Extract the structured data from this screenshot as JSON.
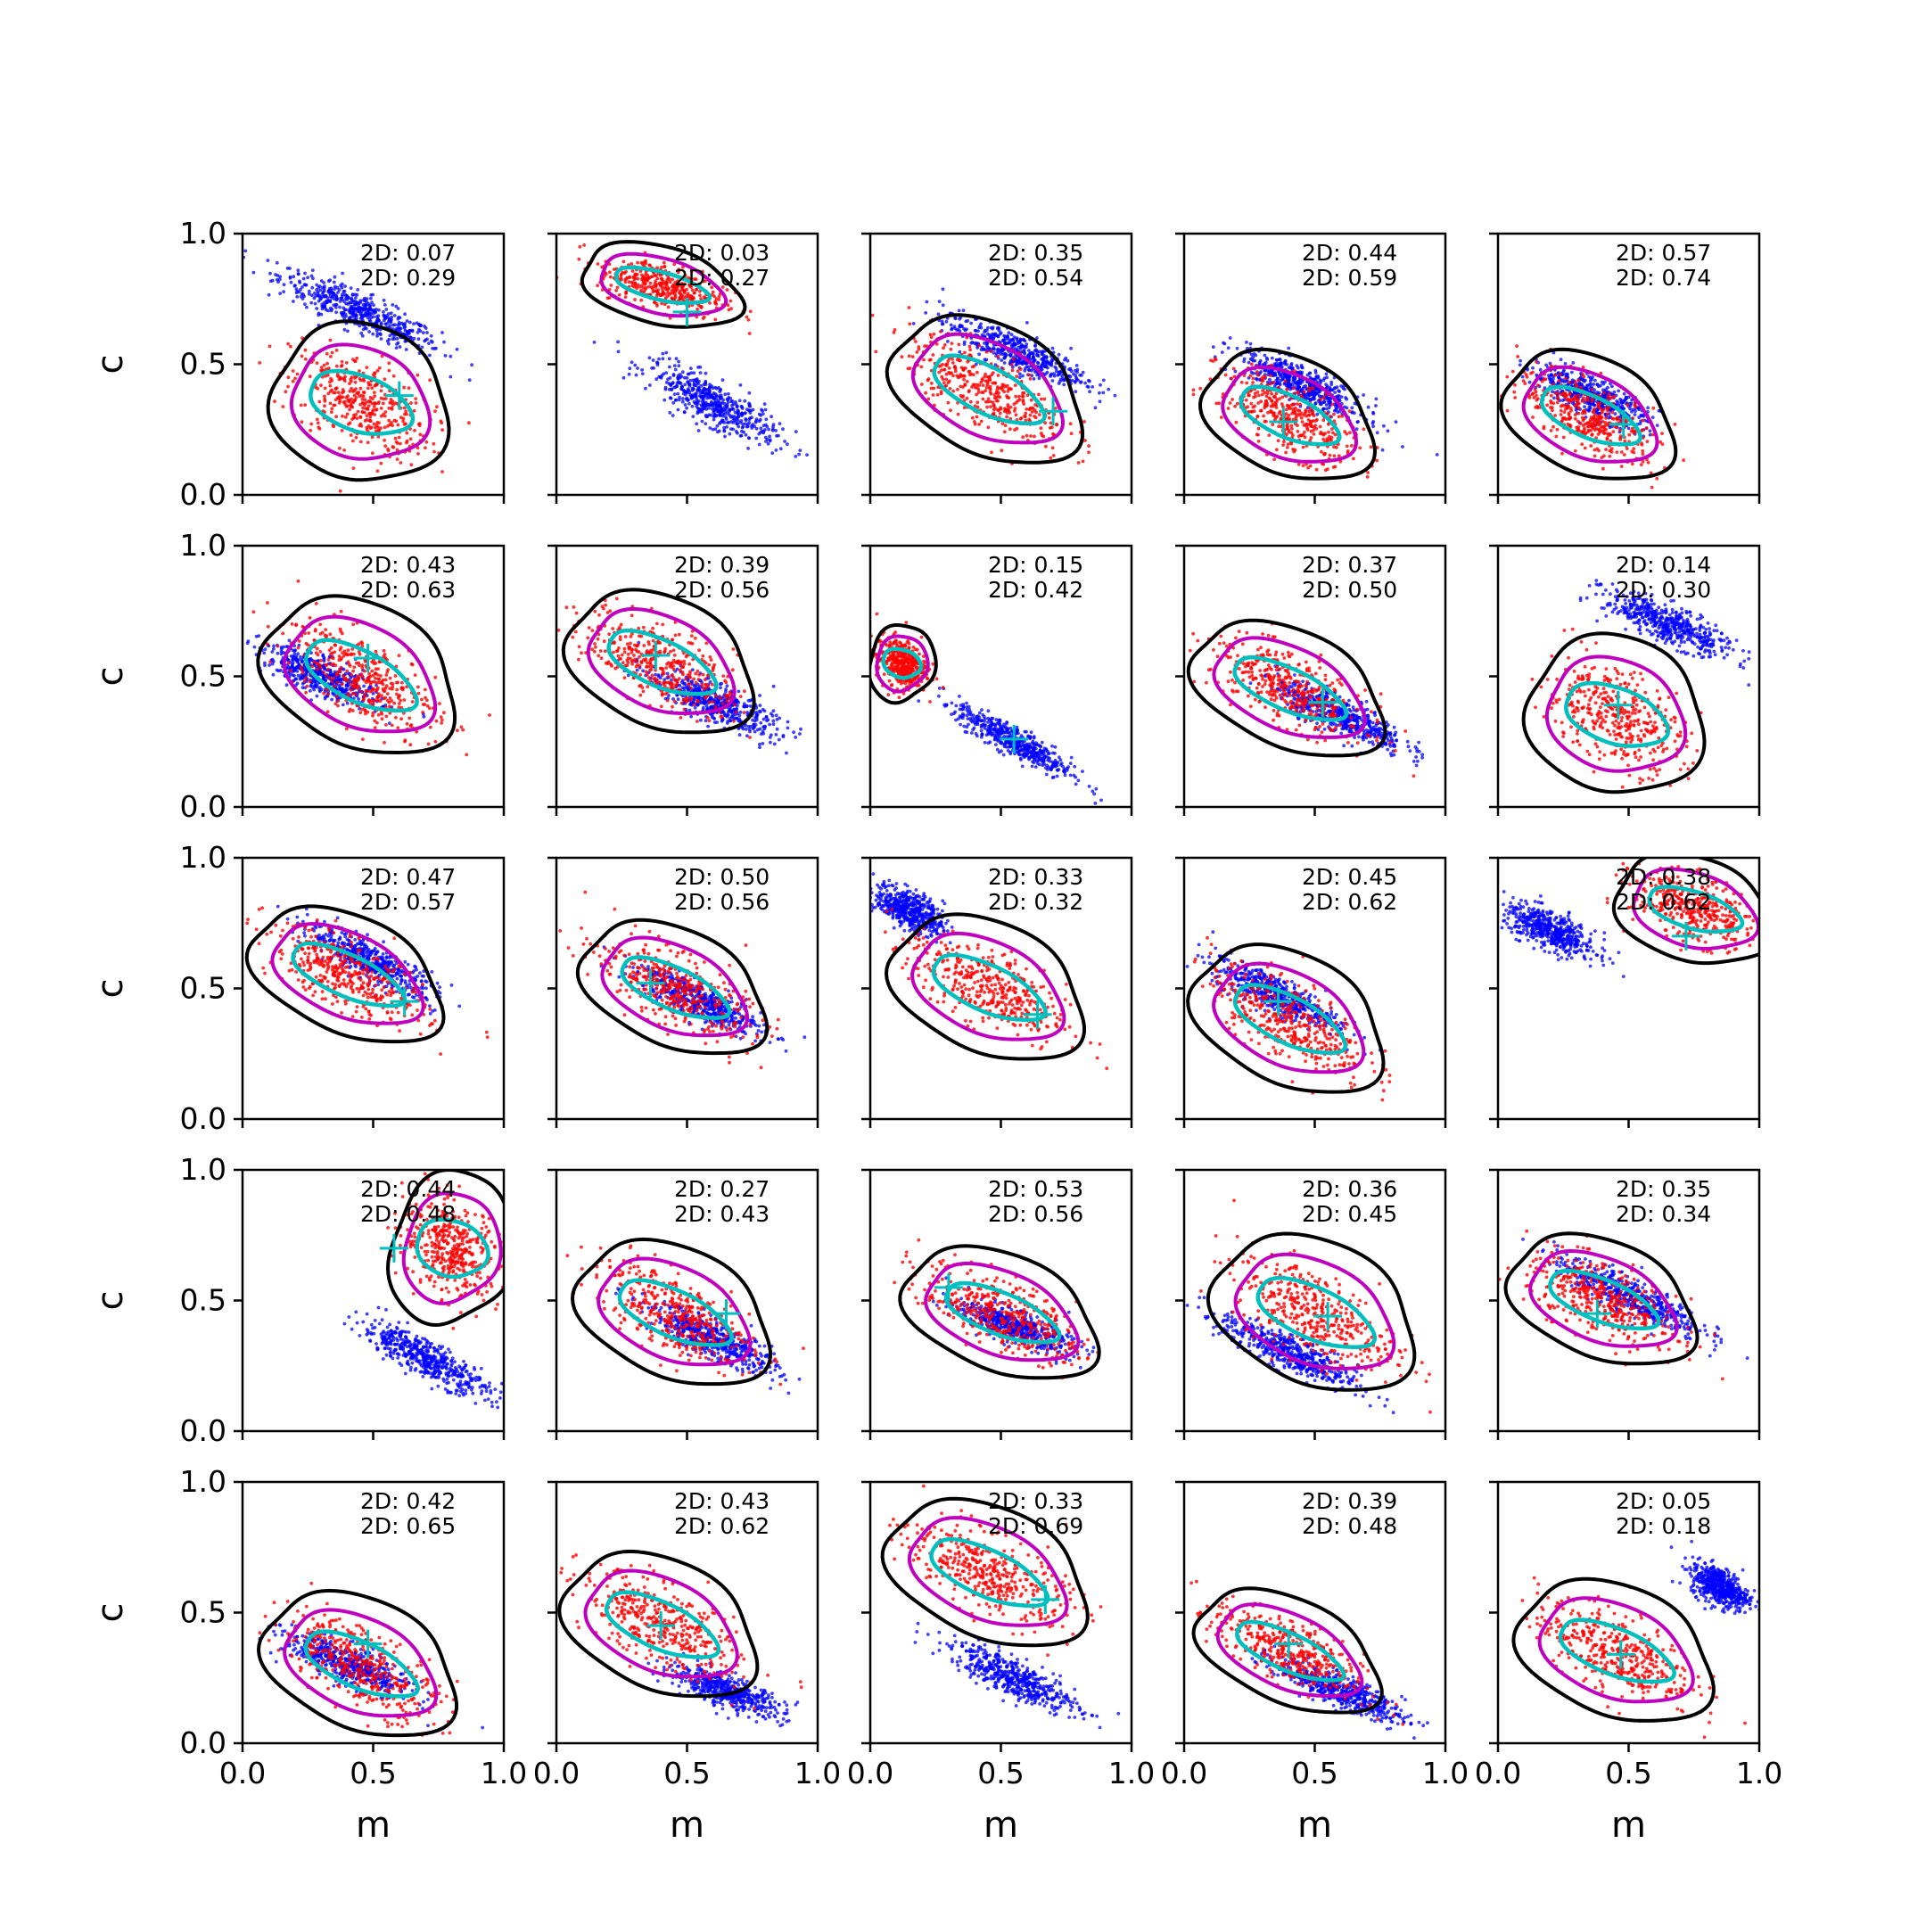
{
  "chart_data": {
    "type": "scatter",
    "layout": {
      "rows": 5,
      "cols": 5
    },
    "xlabel": "m",
    "ylabel": "c",
    "xlim": [
      0,
      1
    ],
    "ylim": [
      0,
      1
    ],
    "xticks": [
      "0.0",
      "0.5",
      "1.0"
    ],
    "yticks": [
      "0.0",
      "0.5",
      "1.0"
    ],
    "grid": false,
    "colors": {
      "blue_points": "#0000ff",
      "red_points": "#ff0000",
      "outer_contour": "#000000",
      "inner_contour": "#bf00bf",
      "core_contour": "#00bfbf",
      "marker": "#00bfbf"
    },
    "panels": [
      {
        "label1": "2D: 0.07",
        "label2": "2D: 0.29",
        "blue": {
          "mx": 0.45,
          "cx": 0.7,
          "slope": -0.45,
          "spread_m": 0.28,
          "spread_c": 0.06
        },
        "red": {
          "mx": 0.45,
          "cx": 0.35,
          "slope": -0.35,
          "spread_m": 0.22,
          "spread_c": 0.12
        },
        "marker": [
          0.6,
          0.38
        ]
      },
      {
        "label1": "2D: 0.03",
        "label2": "2D: 0.27",
        "blue": {
          "mx": 0.6,
          "cx": 0.35,
          "slope": -0.5,
          "spread_m": 0.22,
          "spread_c": 0.07
        },
        "red": {
          "mx": 0.4,
          "cx": 0.8,
          "slope": -0.25,
          "spread_m": 0.2,
          "spread_c": 0.06
        },
        "marker": [
          0.5,
          0.7
        ]
      },
      {
        "label1": "2D: 0.35",
        "label2": "2D: 0.54",
        "blue": {
          "mx": 0.55,
          "cx": 0.55,
          "slope": -0.4,
          "spread_m": 0.25,
          "spread_c": 0.06
        },
        "red": {
          "mx": 0.45,
          "cx": 0.4,
          "slope": -0.5,
          "spread_m": 0.25,
          "spread_c": 0.1
        },
        "marker": [
          0.7,
          0.32
        ]
      },
      {
        "label1": "2D: 0.44",
        "label2": "2D: 0.59",
        "blue": {
          "mx": 0.45,
          "cx": 0.42,
          "slope": -0.45,
          "spread_m": 0.22,
          "spread_c": 0.06
        },
        "red": {
          "mx": 0.4,
          "cx": 0.3,
          "slope": -0.45,
          "spread_m": 0.22,
          "spread_c": 0.09
        },
        "marker": [
          0.38,
          0.28
        ]
      },
      {
        "label1": "2D: 0.57",
        "label2": "2D: 0.74",
        "blue": {
          "mx": 0.35,
          "cx": 0.38,
          "slope": -0.4,
          "spread_m": 0.2,
          "spread_c": 0.06
        },
        "red": {
          "mx": 0.35,
          "cx": 0.3,
          "slope": -0.45,
          "spread_m": 0.22,
          "spread_c": 0.09
        },
        "marker": [
          0.48,
          0.27
        ]
      },
      {
        "label1": "2D: 0.43",
        "label2": "2D: 0.63",
        "blue": {
          "mx": 0.3,
          "cx": 0.5,
          "slope": -0.4,
          "spread_m": 0.2,
          "spread_c": 0.06
        },
        "red": {
          "mx": 0.45,
          "cx": 0.5,
          "slope": -0.5,
          "spread_m": 0.25,
          "spread_c": 0.11
        },
        "marker": [
          0.48,
          0.57
        ]
      },
      {
        "label1": "2D: 0.39",
        "label2": "2D: 0.56",
        "blue": {
          "mx": 0.6,
          "cx": 0.4,
          "slope": -0.4,
          "spread_m": 0.22,
          "spread_c": 0.06
        },
        "red": {
          "mx": 0.4,
          "cx": 0.55,
          "slope": -0.45,
          "spread_m": 0.24,
          "spread_c": 0.1
        },
        "marker": [
          0.38,
          0.58
        ]
      },
      {
        "label1": "2D: 0.15",
        "label2": "2D: 0.42",
        "blue": {
          "mx": 0.55,
          "cx": 0.25,
          "slope": -0.55,
          "spread_m": 0.2,
          "spread_c": 0.05
        },
        "red": {
          "mx": 0.12,
          "cx": 0.55,
          "slope": -0.3,
          "spread_m": 0.08,
          "spread_c": 0.06
        },
        "marker": [
          0.55,
          0.26
        ]
      },
      {
        "label1": "2D: 0.37",
        "label2": "2D: 0.50",
        "blue": {
          "mx": 0.6,
          "cx": 0.35,
          "slope": -0.45,
          "spread_m": 0.22,
          "spread_c": 0.06
        },
        "red": {
          "mx": 0.4,
          "cx": 0.45,
          "slope": -0.45,
          "spread_m": 0.25,
          "spread_c": 0.09
        },
        "marker": [
          0.53,
          0.4
        ]
      },
      {
        "label1": "2D: 0.14",
        "label2": "2D: 0.30",
        "blue": {
          "mx": 0.65,
          "cx": 0.7,
          "slope": -0.4,
          "spread_m": 0.22,
          "spread_c": 0.06
        },
        "red": {
          "mx": 0.45,
          "cx": 0.35,
          "slope": -0.35,
          "spread_m": 0.22,
          "spread_c": 0.12
        },
        "marker": [
          0.46,
          0.39
        ]
      },
      {
        "label1": "2D: 0.47",
        "label2": "2D: 0.57",
        "blue": {
          "mx": 0.5,
          "cx": 0.6,
          "slope": -0.5,
          "spread_m": 0.22,
          "spread_c": 0.06
        },
        "red": {
          "mx": 0.4,
          "cx": 0.55,
          "slope": -0.45,
          "spread_m": 0.25,
          "spread_c": 0.09
        },
        "marker": [
          0.62,
          0.45
        ]
      },
      {
        "label1": "2D: 0.50",
        "label2": "2D: 0.56",
        "blue": {
          "mx": 0.55,
          "cx": 0.45,
          "slope": -0.45,
          "spread_m": 0.22,
          "spread_c": 0.06
        },
        "red": {
          "mx": 0.45,
          "cx": 0.5,
          "slope": -0.45,
          "spread_m": 0.24,
          "spread_c": 0.09
        },
        "marker": [
          0.36,
          0.52
        ]
      },
      {
        "label1": "2D: 0.33",
        "label2": "2D: 0.32",
        "blue": {
          "mx": 0.15,
          "cx": 0.8,
          "slope": -0.4,
          "spread_m": 0.12,
          "spread_c": 0.06
        },
        "red": {
          "mx": 0.45,
          "cx": 0.5,
          "slope": -0.45,
          "spread_m": 0.25,
          "spread_c": 0.1
        },
        "marker": [
          0.64,
          0.4
        ]
      },
      {
        "label1": "2D: 0.45",
        "label2": "2D: 0.62",
        "blue": {
          "mx": 0.35,
          "cx": 0.48,
          "slope": -0.45,
          "spread_m": 0.22,
          "spread_c": 0.06
        },
        "red": {
          "mx": 0.4,
          "cx": 0.38,
          "slope": -0.5,
          "spread_m": 0.25,
          "spread_c": 0.1
        },
        "marker": [
          0.36,
          0.45
        ]
      },
      {
        "label1": "2D: 0.38",
        "label2": "2D: 0.62",
        "blue": {
          "mx": 0.2,
          "cx": 0.72,
          "slope": -0.4,
          "spread_m": 0.16,
          "spread_c": 0.06
        },
        "red": {
          "mx": 0.75,
          "cx": 0.8,
          "slope": -0.3,
          "spread_m": 0.2,
          "spread_c": 0.08
        },
        "marker": [
          0.72,
          0.7
        ]
      },
      {
        "label1": "2D: 0.44",
        "label2": "2D: 0.48",
        "blue": {
          "mx": 0.7,
          "cx": 0.28,
          "slope": -0.5,
          "spread_m": 0.22,
          "spread_c": 0.06
        },
        "red": {
          "mx": 0.8,
          "cx": 0.7,
          "slope": -0.3,
          "spread_m": 0.15,
          "spread_c": 0.12
        },
        "marker": [
          0.58,
          0.7
        ]
      },
      {
        "label1": "2D: 0.27",
        "label2": "2D: 0.43",
        "blue": {
          "mx": 0.6,
          "cx": 0.35,
          "slope": -0.45,
          "spread_m": 0.22,
          "spread_c": 0.06
        },
        "red": {
          "mx": 0.45,
          "cx": 0.45,
          "slope": -0.45,
          "spread_m": 0.25,
          "spread_c": 0.1
        },
        "marker": [
          0.65,
          0.45
        ]
      },
      {
        "label1": "2D: 0.53",
        "label2": "2D: 0.56",
        "blue": {
          "mx": 0.55,
          "cx": 0.4,
          "slope": -0.35,
          "spread_m": 0.2,
          "spread_c": 0.05
        },
        "red": {
          "mx": 0.5,
          "cx": 0.45,
          "slope": -0.4,
          "spread_m": 0.25,
          "spread_c": 0.09
        },
        "marker": [
          0.3,
          0.55
        ]
      },
      {
        "label1": "2D: 0.36",
        "label2": "2D: 0.45",
        "blue": {
          "mx": 0.4,
          "cx": 0.3,
          "slope": -0.45,
          "spread_m": 0.24,
          "spread_c": 0.06
        },
        "red": {
          "mx": 0.5,
          "cx": 0.45,
          "slope": -0.45,
          "spread_m": 0.26,
          "spread_c": 0.11
        },
        "marker": [
          0.55,
          0.44
        ]
      },
      {
        "label1": "2D: 0.35",
        "label2": "2D: 0.34",
        "blue": {
          "mx": 0.5,
          "cx": 0.52,
          "slope": -0.45,
          "spread_m": 0.25,
          "spread_c": 0.06
        },
        "red": {
          "mx": 0.4,
          "cx": 0.5,
          "slope": -0.4,
          "spread_m": 0.24,
          "spread_c": 0.09
        },
        "marker": [
          0.38,
          0.45
        ]
      },
      {
        "label1": "2D: 0.42",
        "label2": "2D: 0.65",
        "blue": {
          "mx": 0.4,
          "cx": 0.3,
          "slope": -0.4,
          "spread_m": 0.22,
          "spread_c": 0.06
        },
        "red": {
          "mx": 0.45,
          "cx": 0.3,
          "slope": -0.45,
          "spread_m": 0.25,
          "spread_c": 0.1
        },
        "marker": [
          0.48,
          0.38
        ]
      },
      {
        "label1": "2D: 0.43",
        "label2": "2D: 0.62",
        "blue": {
          "mx": 0.65,
          "cx": 0.2,
          "slope": -0.35,
          "spread_m": 0.2,
          "spread_c": 0.05
        },
        "red": {
          "mx": 0.4,
          "cx": 0.45,
          "slope": -0.45,
          "spread_m": 0.25,
          "spread_c": 0.1
        },
        "marker": [
          0.4,
          0.45
        ]
      },
      {
        "label1": "2D: 0.33",
        "label2": "2D: 0.69",
        "blue": {
          "mx": 0.55,
          "cx": 0.25,
          "slope": -0.45,
          "spread_m": 0.22,
          "spread_c": 0.06
        },
        "red": {
          "mx": 0.45,
          "cx": 0.65,
          "slope": -0.45,
          "spread_m": 0.26,
          "spread_c": 0.1
        },
        "marker": [
          0.67,
          0.55
        ]
      },
      {
        "label1": "2D: 0.39",
        "label2": "2D: 0.48",
        "blue": {
          "mx": 0.6,
          "cx": 0.2,
          "slope": -0.4,
          "spread_m": 0.22,
          "spread_c": 0.05
        },
        "red": {
          "mx": 0.4,
          "cx": 0.35,
          "slope": -0.45,
          "spread_m": 0.24,
          "spread_c": 0.08
        },
        "marker": [
          0.4,
          0.38
        ]
      },
      {
        "label1": "2D: 0.05",
        "label2": "2D: 0.18",
        "blue": {
          "mx": 0.85,
          "cx": 0.6,
          "slope": -0.4,
          "spread_m": 0.1,
          "spread_c": 0.06
        },
        "red": {
          "mx": 0.45,
          "cx": 0.35,
          "slope": -0.4,
          "spread_m": 0.25,
          "spread_c": 0.1
        },
        "marker": [
          0.47,
          0.34
        ]
      }
    ]
  }
}
